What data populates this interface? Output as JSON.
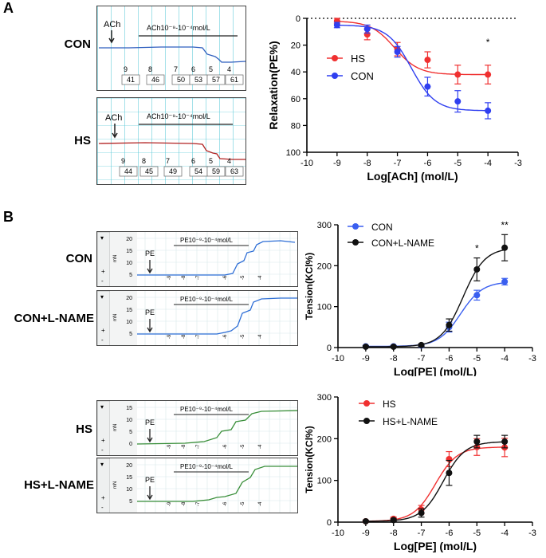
{
  "panels": {
    "a_letter": "A",
    "b_letter": "B"
  },
  "traces": {
    "a_con": {
      "label": "CON",
      "agonist": "ACh",
      "range": "ACh10⁻⁹-10⁻⁴mol/L",
      "ticks": [
        "9",
        "8",
        "7",
        "6",
        "5",
        "4"
      ],
      "values": [
        "41",
        "46",
        "50",
        "53",
        "57",
        "61"
      ],
      "color": "#2f5fbf"
    },
    "a_hs": {
      "label": "HS",
      "agonist": "ACh",
      "range": "ACh10⁻⁹-10⁻⁴mol/L",
      "ticks": [
        "9",
        "8",
        "7",
        "6",
        "5",
        "4"
      ],
      "values": [
        "44",
        "45",
        "49",
        "54",
        "59",
        "63"
      ],
      "color": "#b22222"
    },
    "b_con": {
      "label": "CON",
      "agonist": "PE",
      "range": "PE10⁻⁹-10⁻⁴mol/L",
      "yticks": [
        "20",
        "15",
        "10",
        "5"
      ],
      "unit": "mN",
      "xticks": [
        "-9",
        "-8",
        "-7",
        "-6",
        "-5",
        "-4"
      ],
      "color": "#2f6fd6"
    },
    "b_con_lname": {
      "label": "CON+L-NAME",
      "agonist": "PE",
      "range": "PE10⁻⁹-10⁻⁴mol/L",
      "yticks": [
        "20",
        "15",
        "10",
        "5"
      ],
      "unit": "mN",
      "xticks": [
        "-9",
        "-8",
        "-7",
        "-6",
        "-5",
        "-4"
      ],
      "color": "#2f6fd6"
    },
    "b_hs": {
      "label": "HS",
      "agonist": "PE",
      "range": "PE10⁻⁹-10⁻⁴mol/L",
      "yticks": [
        "15",
        "10",
        "5",
        "0"
      ],
      "unit": "mN",
      "xticks": [
        "-9",
        "-8",
        "-7",
        "-6",
        "-5",
        "-4"
      ],
      "color": "#3a8f3a"
    },
    "b_hs_lname": {
      "label": "HS+L-NAME",
      "agonist": "PE",
      "range": "PE10⁻⁹-10⁻⁴mol/L",
      "yticks": [
        "20",
        "15",
        "10",
        "5"
      ],
      "unit": "mN",
      "xticks": [
        "-9",
        "-8",
        "-7",
        "-6",
        "-5",
        "-4"
      ],
      "color": "#3a8f3a"
    }
  },
  "chart_data": [
    {
      "type": "line",
      "title": "",
      "xlabel": "Log[ACh] (mol/L)",
      "ylabel": "Relaxation(PE%)",
      "xlim": [
        -10,
        -3
      ],
      "ylim": [
        0,
        100
      ],
      "y_inverted": true,
      "xticks": [
        "-10",
        "-9",
        "-8",
        "-7",
        "-6",
        "-5",
        "-4",
        "-3"
      ],
      "yticks": [
        "0",
        "20",
        "40",
        "60",
        "80",
        "100"
      ],
      "x": [
        -9,
        -8,
        -7,
        -6,
        -5,
        -4
      ],
      "series": [
        {
          "name": "HS",
          "color": "#f03030",
          "values": [
            2,
            12,
            23,
            31,
            42,
            42
          ],
          "errors": [
            2,
            4,
            5,
            6,
            7,
            7
          ]
        },
        {
          "name": "CON",
          "color": "#2f3ff0",
          "values": [
            5,
            8,
            25,
            51,
            62,
            69
          ],
          "errors": [
            2,
            3,
            4,
            7,
            8,
            6
          ]
        }
      ],
      "annotations": [
        {
          "x": -4,
          "text": "*"
        }
      ],
      "legend": "left"
    },
    {
      "type": "line",
      "title": "",
      "xlabel": "Log[PE] (mol/L)",
      "ylabel": "Tension(KCl%)",
      "xlim": [
        -10,
        -3
      ],
      "ylim": [
        0,
        300
      ],
      "xticks": [
        "-10",
        "-9",
        "-8",
        "-7",
        "-6",
        "-5",
        "-4",
        "-3"
      ],
      "yticks": [
        "0",
        "100",
        "200",
        "300"
      ],
      "x": [
        -9,
        -8,
        -7,
        -6,
        -5,
        -4
      ],
      "series": [
        {
          "name": "CON",
          "color": "#3a5ff0",
          "values": [
            3,
            3,
            5,
            50,
            128,
            161
          ],
          "errors": [
            2,
            2,
            3,
            12,
            12,
            8
          ]
        },
        {
          "name": "CON+L-NAME",
          "color": "#111111",
          "values": [
            2,
            2,
            6,
            55,
            191,
            244
          ],
          "errors": [
            2,
            2,
            3,
            15,
            28,
            32
          ]
        }
      ],
      "annotations": [
        {
          "x": -5,
          "text": "*"
        },
        {
          "x": -4,
          "text": "**"
        }
      ],
      "legend": "top-left"
    },
    {
      "type": "line",
      "title": "",
      "xlabel": "Log[PE] (mol/L)",
      "ylabel": "Tension(KCl%)",
      "xlim": [
        -10,
        -3
      ],
      "ylim": [
        0,
        300
      ],
      "xticks": [
        "-10",
        "-9",
        "-8",
        "-7",
        "-6",
        "-5",
        "-4",
        "-3"
      ],
      "yticks": [
        "0",
        "100",
        "200",
        "300"
      ],
      "x": [
        -9,
        -8,
        -7,
        -6,
        -5,
        -4
      ],
      "series": [
        {
          "name": "HS",
          "color": "#f03030",
          "values": [
            2,
            8,
            30,
            151,
            180,
            179
          ],
          "errors": [
            2,
            4,
            10,
            18,
            20,
            22
          ]
        },
        {
          "name": "HS+L-NAME",
          "color": "#111111",
          "values": [
            2,
            5,
            22,
            118,
            193,
            193
          ],
          "errors": [
            2,
            3,
            10,
            30,
            15,
            15
          ]
        }
      ],
      "annotations": [],
      "legend": "top-left"
    }
  ]
}
